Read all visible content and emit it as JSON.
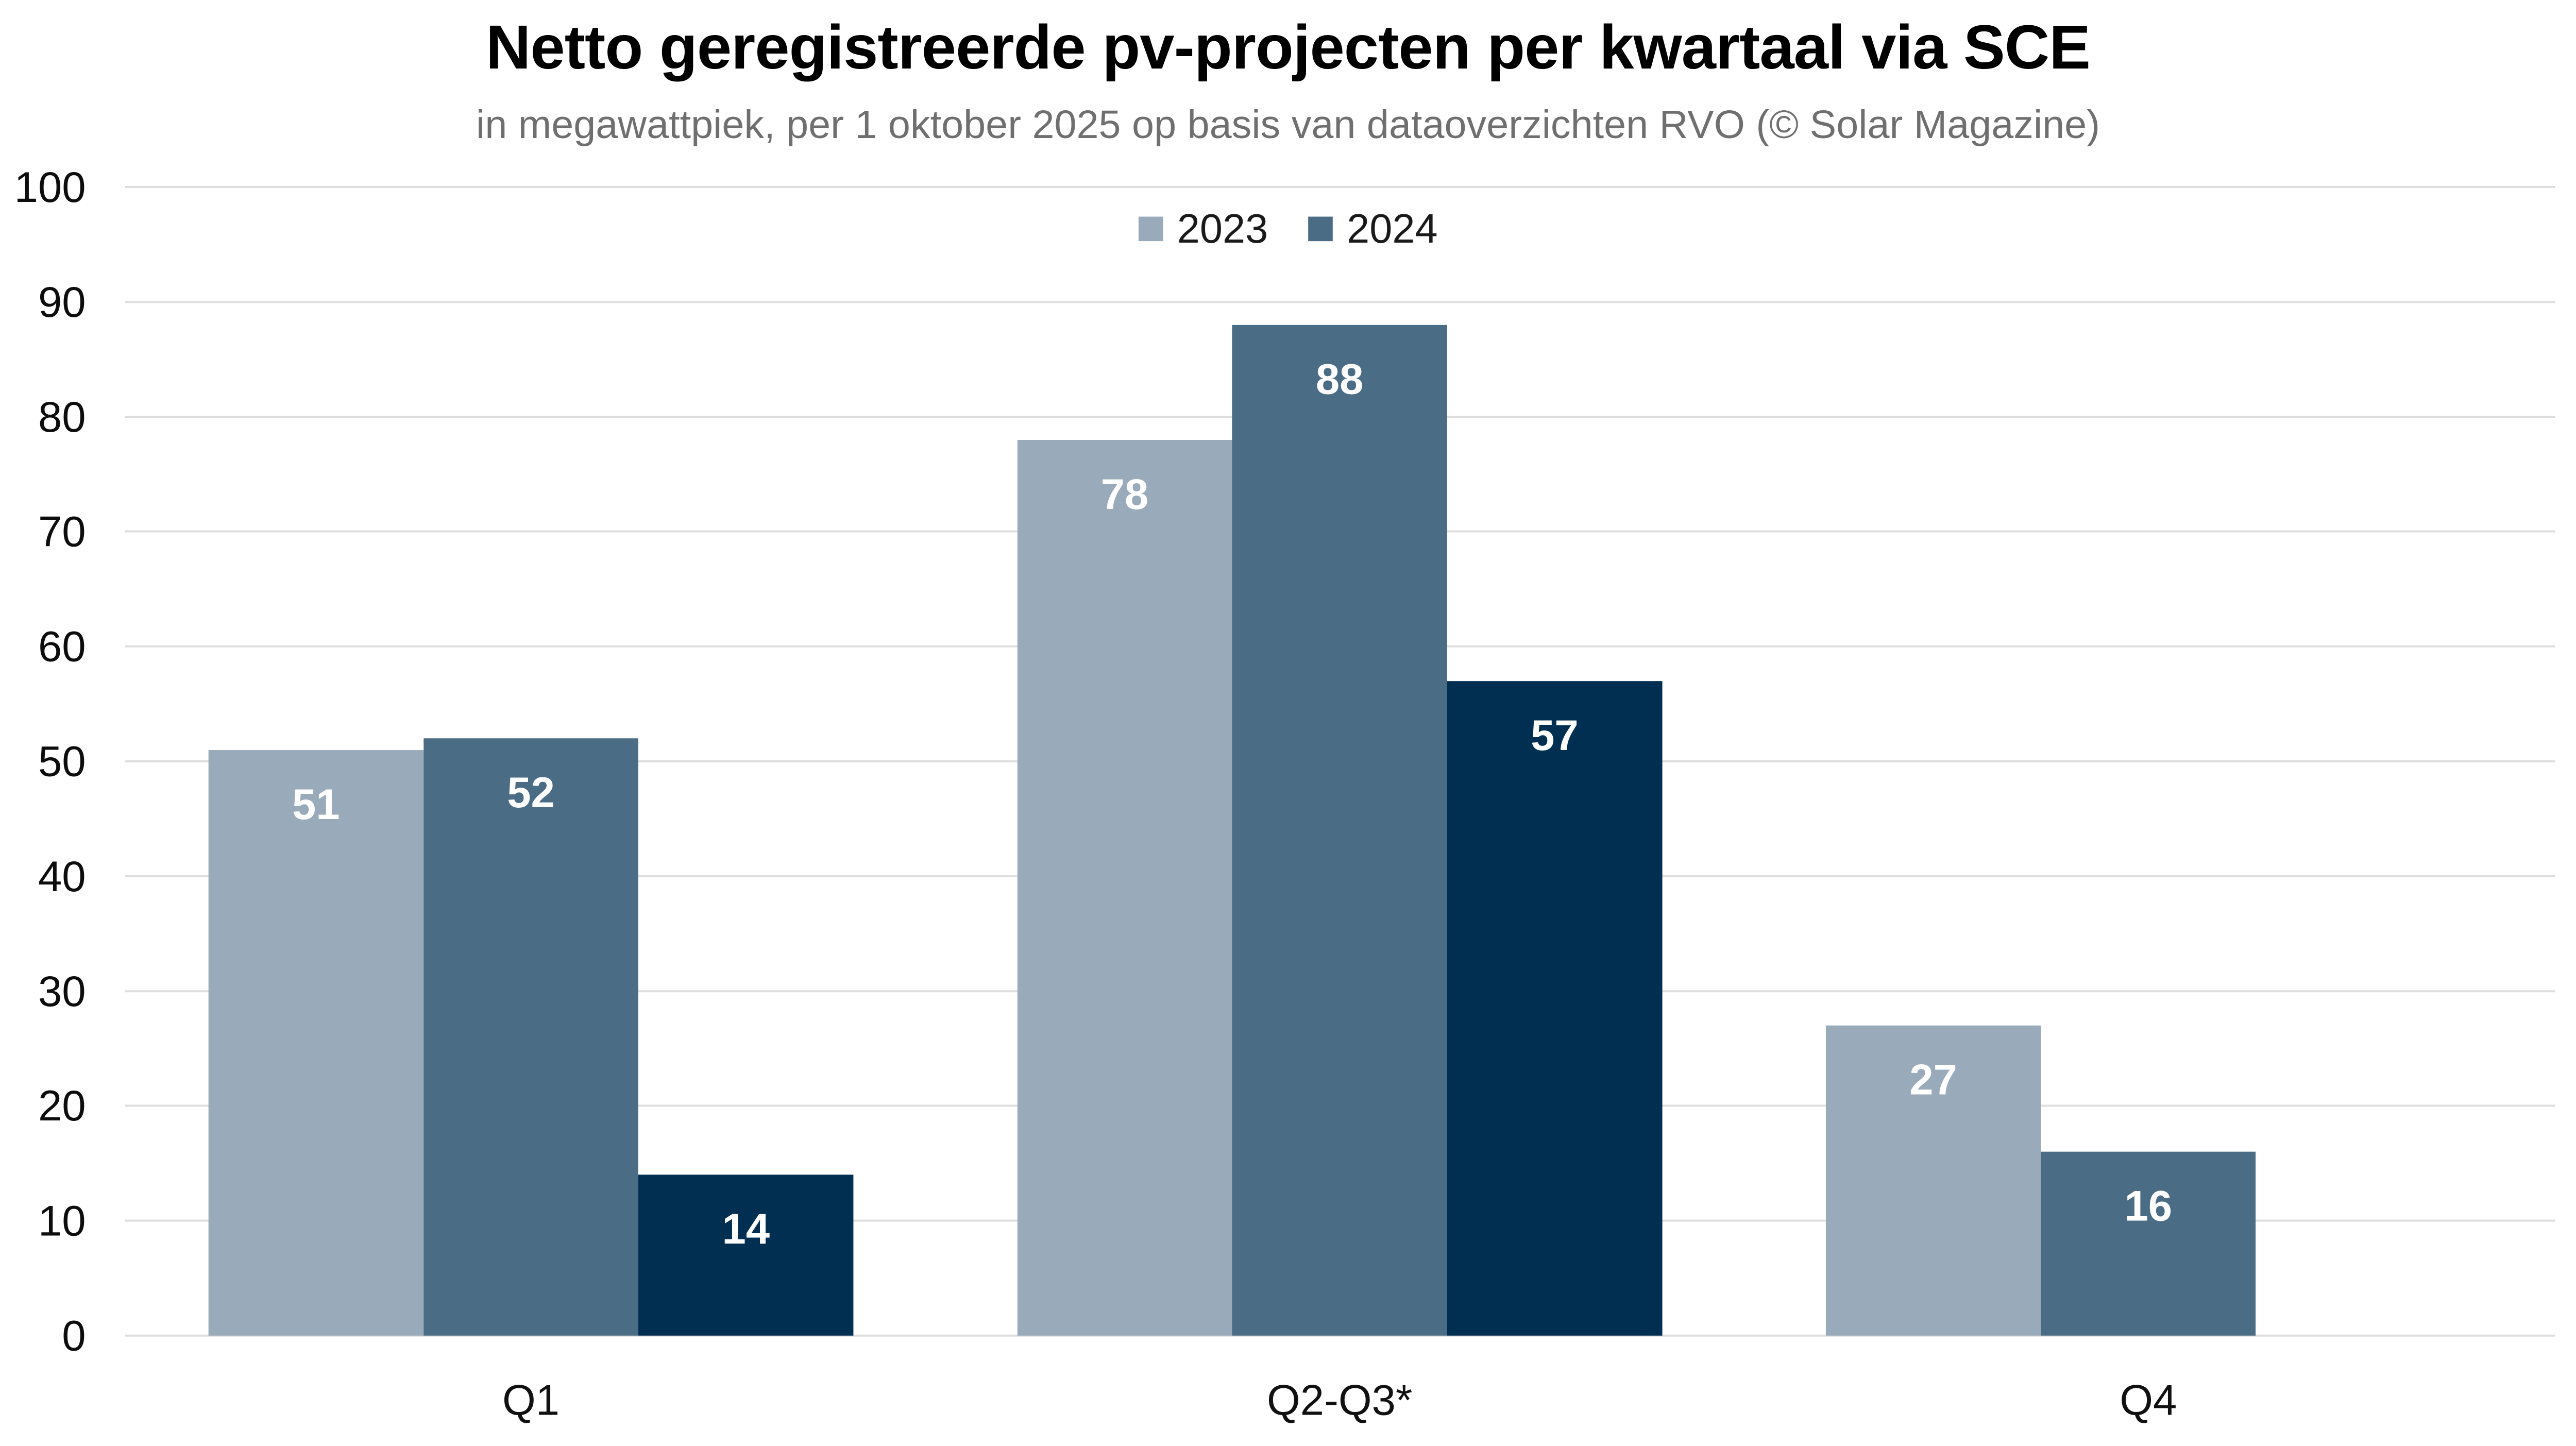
{
  "chart": {
    "title": "Netto geregistreerde pv-projecten per kwartaal via SCE",
    "subtitle": "in megawattpiek, per 1 oktober 2025 op basis van dataoverzichten RVO (© Solar Magazine)"
  },
  "chart_data": {
    "type": "bar",
    "title": "Netto geregistreerde pv-projecten per kwartaal via SCE",
    "subtitle": "in megawattpiek, per 1 oktober 2025 op basis van dataoverzichten RVO (© Solar Magazine)",
    "categories": [
      "Q1",
      "Q2-Q3*",
      "Q4"
    ],
    "series": [
      {
        "name": "2023",
        "color": "#99aaba",
        "in_legend": true,
        "values": [
          51,
          78,
          27
        ]
      },
      {
        "name": "2024",
        "color": "#4b6c85",
        "in_legend": true,
        "values": [
          52,
          88,
          16
        ]
      },
      {
        "name": null,
        "color": "#002f51",
        "in_legend": false,
        "values": [
          14,
          57,
          null
        ]
      }
    ],
    "xlabel": "",
    "ylabel": "",
    "ylim": [
      0,
      100
    ],
    "yticks": [
      0,
      10,
      20,
      30,
      40,
      50,
      60,
      70,
      80,
      90,
      100
    ],
    "grid": "horizontal",
    "gridline_color": "#dedede",
    "background_color": "#ffffff",
    "legend_position": "top-center",
    "legend_entries": [
      "2023",
      "2024"
    ],
    "value_labels": {
      "position": "inside-top",
      "color": "#ffffff",
      "bold": true
    }
  }
}
